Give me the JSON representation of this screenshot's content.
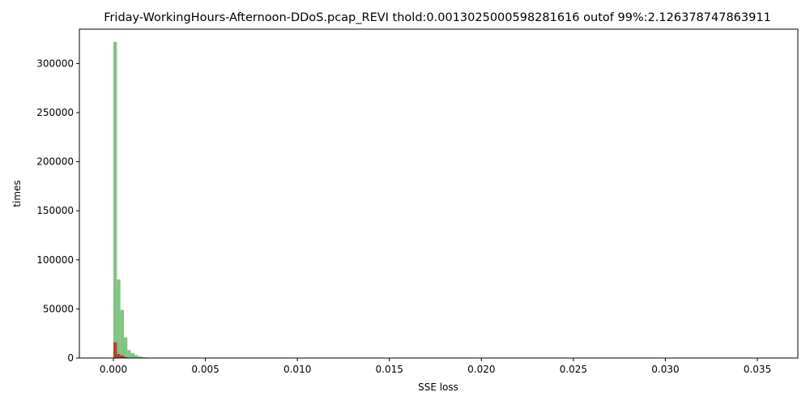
{
  "chart_data": {
    "type": "bar",
    "title": "Friday-WorkingHours-Afternoon-DDoS.pcap_REVI thold:0.0013025000598281616 outof 99%:2.126378747863911",
    "xlabel": "SSE loss",
    "ylabel": "times",
    "xlim": [
      -0.00185,
      0.0372
    ],
    "ylim": [
      0,
      335000
    ],
    "bin_width": 0.00019,
    "x_ticks": [
      0.0,
      0.005,
      0.01,
      0.015,
      0.02,
      0.025,
      0.03,
      0.035
    ],
    "x_tick_labels": [
      "0.000",
      "0.005",
      "0.010",
      "0.015",
      "0.020",
      "0.025",
      "0.030",
      "0.035"
    ],
    "y_ticks": [
      0,
      50000,
      100000,
      150000,
      200000,
      250000,
      300000
    ],
    "y_tick_labels": [
      "0",
      "50000",
      "100000",
      "150000",
      "200000",
      "250000",
      "300000"
    ],
    "grid": false,
    "series": [
      {
        "color": "#7fc47f",
        "bins": [
          {
            "x": 0.0,
            "value": 322000
          },
          {
            "x": 0.00019,
            "value": 80000
          },
          {
            "x": 0.00038,
            "value": 49000
          },
          {
            "x": 0.00057,
            "value": 21000
          },
          {
            "x": 0.00076,
            "value": 8000
          },
          {
            "x": 0.00095,
            "value": 5000
          },
          {
            "x": 0.00114,
            "value": 3000
          },
          {
            "x": 0.00133,
            "value": 1800
          },
          {
            "x": 0.00152,
            "value": 1000
          },
          {
            "x": 0.00171,
            "value": 600
          },
          {
            "x": 0.0019,
            "value": 400
          },
          {
            "x": 0.00209,
            "value": 200
          }
        ]
      },
      {
        "color": "#c0392b",
        "bins": [
          {
            "x": 0.0,
            "value": 16000
          },
          {
            "x": 0.00019,
            "value": 4000
          },
          {
            "x": 0.00038,
            "value": 2500
          },
          {
            "x": 0.00057,
            "value": 1000
          },
          {
            "x": 0.00076,
            "value": 400
          }
        ]
      }
    ]
  }
}
